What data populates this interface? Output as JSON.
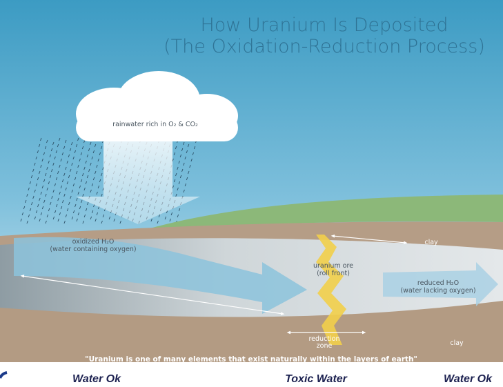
{
  "header": {
    "title": [
      "How Uranium Is Deposited",
      "(The Oxidation-Reduction Process)"
    ]
  },
  "labels": {
    "cloud": "rainwater rich in O₂ & CO₂",
    "oxidized": [
      "oxidized H₂O",
      "(water containing oxygen)"
    ],
    "ore": [
      "uranium ore",
      "(roll front)"
    ],
    "reduced": [
      "reduced H₂O",
      "(water lacking oxygen)"
    ],
    "clay_upper": "clay",
    "clay_lower": "clay",
    "reduction_zone": [
      "reduction",
      "zone"
    ]
  },
  "quote": "\"Uranium is one of many elements that exist naturally within the layers of earth\"",
  "captions": [
    "Water Ok",
    "Toxic Water",
    "Water Ok"
  ]
}
